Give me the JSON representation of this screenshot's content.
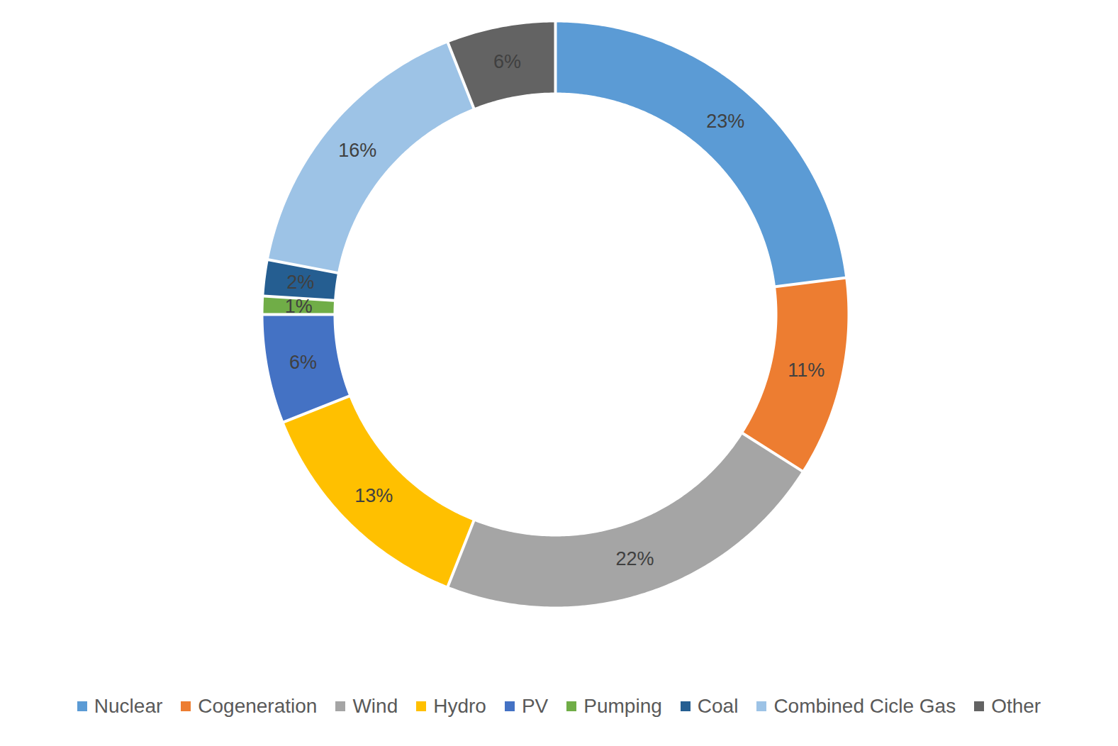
{
  "chart_data": {
    "type": "donut",
    "categories": [
      "Nuclear",
      "Cogeneration",
      "Wind",
      "Hydro",
      "PV",
      "Pumping",
      "Coal",
      "Combined Cicle Gas",
      "Other"
    ],
    "values": [
      23,
      11,
      22,
      13,
      6,
      1,
      2,
      16,
      6
    ],
    "value_labels": [
      "23%",
      "11%",
      "22%",
      "13%",
      "6%",
      "1%",
      "2%",
      "16%",
      "6%"
    ],
    "colors": [
      "#5b9bd5",
      "#ed7d31",
      "#a5a5a5",
      "#ffc000",
      "#4472c4",
      "#70ad47",
      "#255e91",
      "#9dc3e6",
      "#636363"
    ],
    "data_labels": true,
    "legend": "bottom",
    "tick_labels": false
  }
}
